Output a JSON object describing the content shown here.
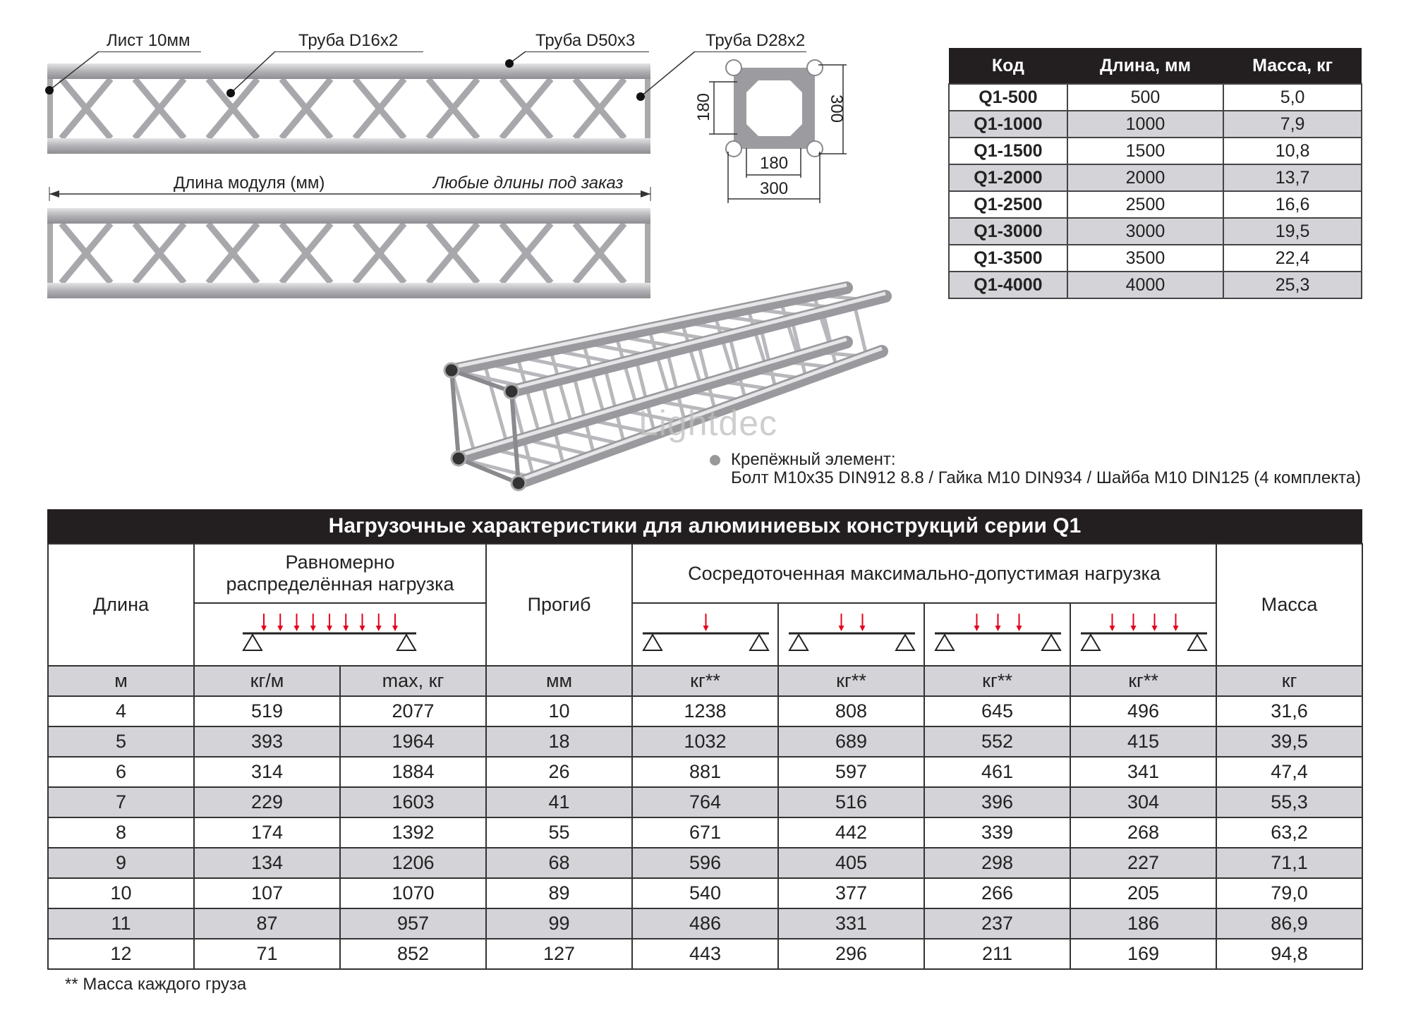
{
  "callouts": [
    "Лист 10мм",
    "Труба D16x2",
    "Труба D50x3",
    "Труба D28x2"
  ],
  "length_dim": {
    "label": "Длина модуля (мм)",
    "note": "Любые длины под заказ"
  },
  "cross_section": {
    "inner_v": "180",
    "outer_v": "300",
    "inner_h": "180",
    "outer_h": "300"
  },
  "spec_table": {
    "headers": [
      "Код",
      "Длина, мм",
      "Масса, кг"
    ],
    "rows": [
      [
        "Q1-500",
        "500",
        "5,0"
      ],
      [
        "Q1-1000",
        "1000",
        "7,9"
      ],
      [
        "Q1-1500",
        "1500",
        "10,8"
      ],
      [
        "Q1-2000",
        "2000",
        "13,7"
      ],
      [
        "Q1-2500",
        "2500",
        "16,6"
      ],
      [
        "Q1-3000",
        "3000",
        "19,5"
      ],
      [
        "Q1-3500",
        "3500",
        "22,4"
      ],
      [
        "Q1-4000",
        "4000",
        "25,3"
      ]
    ]
  },
  "fastener": {
    "title": "Крепёжный элемент:",
    "detail": "Болт M10x35 DIN912 8.8 / Гайка M10 DIN934 / Шайба M10 DIN125 (4 комплекта)"
  },
  "watermark": "Lightdec",
  "load_table": {
    "title": "Нагрузочные характеристики для алюминиевых конструкций серии Q1",
    "headers": {
      "length": "Длина",
      "uniform": "Равномерно распределённая нагрузка",
      "deflection": "Прогиб",
      "point": "Сосредоточенная максимально-допустимая нагрузка",
      "mass": "Масса"
    },
    "load_diagrams": {
      "uniform_arrows": 9,
      "point_arrows": [
        1,
        2,
        3,
        4
      ]
    },
    "units": [
      "м",
      "кг/м",
      "max, кг",
      "мм",
      "кг**",
      "кг**",
      "кг**",
      "кг**",
      "кг"
    ],
    "rows": [
      [
        "4",
        "519",
        "2077",
        "10",
        "1238",
        "808",
        "645",
        "496",
        "31,6"
      ],
      [
        "5",
        "393",
        "1964",
        "18",
        "1032",
        "689",
        "552",
        "415",
        "39,5"
      ],
      [
        "6",
        "314",
        "1884",
        "26",
        "881",
        "597",
        "461",
        "341",
        "47,4"
      ],
      [
        "7",
        "229",
        "1603",
        "41",
        "764",
        "516",
        "396",
        "304",
        "55,3"
      ],
      [
        "8",
        "174",
        "1392",
        "55",
        "671",
        "442",
        "339",
        "268",
        "63,2"
      ],
      [
        "9",
        "134",
        "1206",
        "68",
        "596",
        "405",
        "298",
        "227",
        "71,1"
      ],
      [
        "10",
        "107",
        "1070",
        "89",
        "540",
        "377",
        "266",
        "205",
        "79,0"
      ],
      [
        "11",
        "87",
        "957",
        "99",
        "486",
        "331",
        "237",
        "186",
        "86,9"
      ],
      [
        "12",
        "71",
        "852",
        "127",
        "443",
        "296",
        "211",
        "169",
        "94,8"
      ]
    ],
    "footnote": "** Масса каждого груза"
  },
  "colors": {
    "header_bg": "#231f20",
    "row_alt": "#d3d3d8",
    "arrow": "#e3001b",
    "metal": "#b4b4b8"
  }
}
